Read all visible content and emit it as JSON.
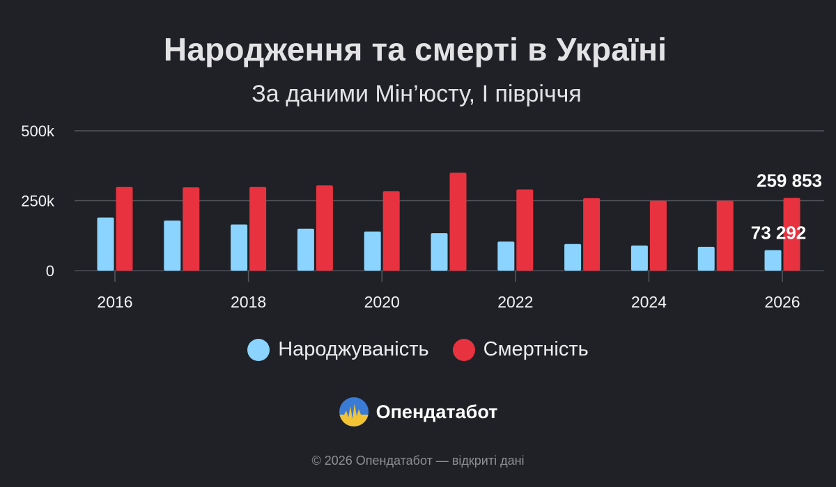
{
  "header": {
    "title": "Народження та смерті в Україні",
    "subtitle": "За даними Мін’юсту, І півріччя"
  },
  "chart_data": {
    "type": "bar",
    "x": [
      2016,
      2017,
      2018,
      2019,
      2020,
      2021,
      2022,
      2023,
      2024,
      2025,
      2026
    ],
    "x_tick_labels": [
      "2016",
      "2018",
      "2020",
      "2022",
      "2024",
      "2026"
    ],
    "y_tick_labels": [
      "0",
      "250k",
      "500k"
    ],
    "ylim": [
      0,
      500000
    ],
    "grid": true,
    "legend_position": "bottom",
    "series": [
      {
        "name": "Народжуваність",
        "color": "#8ad4ff",
        "values": [
          190000,
          179000,
          165000,
          150000,
          140000,
          134000,
          104000,
          95000,
          90000,
          85000,
          73292
        ]
      },
      {
        "name": "Смертність",
        "color": "#e8323f",
        "values": [
          299000,
          298000,
          299000,
          305000,
          284000,
          350000,
          290000,
          259000,
          250000,
          250000,
          259853
        ]
      }
    ],
    "data_labels": [
      {
        "series": 0,
        "index": 10,
        "text": "73 292"
      },
      {
        "series": 1,
        "index": 10,
        "text": "259 853"
      }
    ]
  },
  "legend": {
    "births": {
      "label": "Народжуваність",
      "icon": "light-blue-circle-icon",
      "color": "#8ad4ff"
    },
    "deaths": {
      "label": "Смертність",
      "icon": "red-circle-icon",
      "color": "#e8323f"
    }
  },
  "brand": {
    "name": "Опендатабот",
    "icon": "opendatabot-logo-icon"
  },
  "footer": {
    "text": "© 2026 Опендатабот — відкриті дані"
  }
}
